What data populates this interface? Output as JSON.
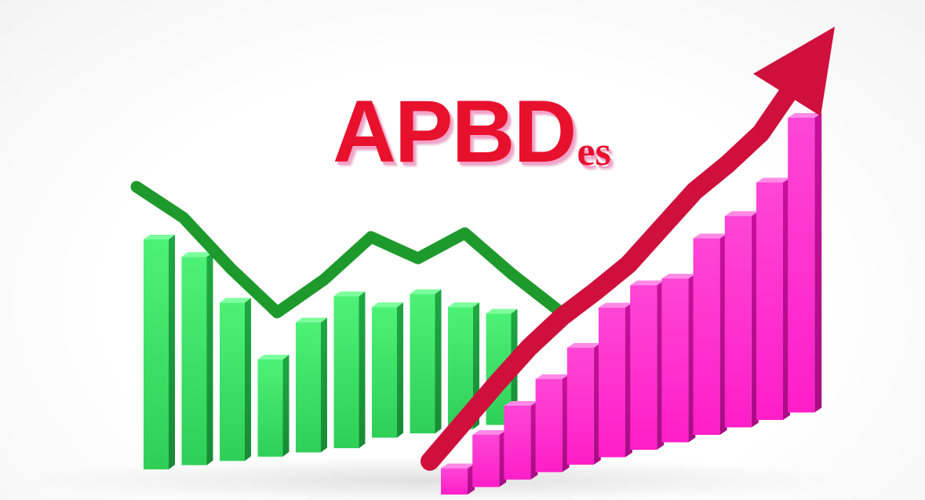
{
  "title": {
    "main": "APBD",
    "sub": "es"
  },
  "chart_data": [
    {
      "type": "bar",
      "series": [
        {
          "values": [
            10,
            9.2,
            7.1,
            4.5,
            6.2,
            7.4,
            6.9,
            7.5,
            6.9,
            6.6
          ]
        }
      ],
      "trend": [
        10,
        8.4,
        5.8,
        3.5,
        5.2,
        7.4,
        6.3,
        7.6,
        5.5,
        3.6
      ],
      "colors": {
        "bars": "#2fd95c",
        "trend": "#1e9a2c"
      }
    },
    {
      "type": "bar",
      "series": [
        {
          "values": [
            0.4,
            1.9,
            3.2,
            4.4,
            5.8,
            7.6,
            8.6,
            8.9,
            10.7,
            11.7,
            13.2,
            16.1
          ]
        }
      ],
      "trend": [
        0.5,
        2.5,
        4.5,
        6.4,
        8.0,
        9.3,
        10.7,
        12.6,
        14.5,
        15.9,
        17.5,
        20.0
      ],
      "colors": {
        "bars": "#ff14c4",
        "trend": "#cf0f3c"
      }
    }
  ]
}
